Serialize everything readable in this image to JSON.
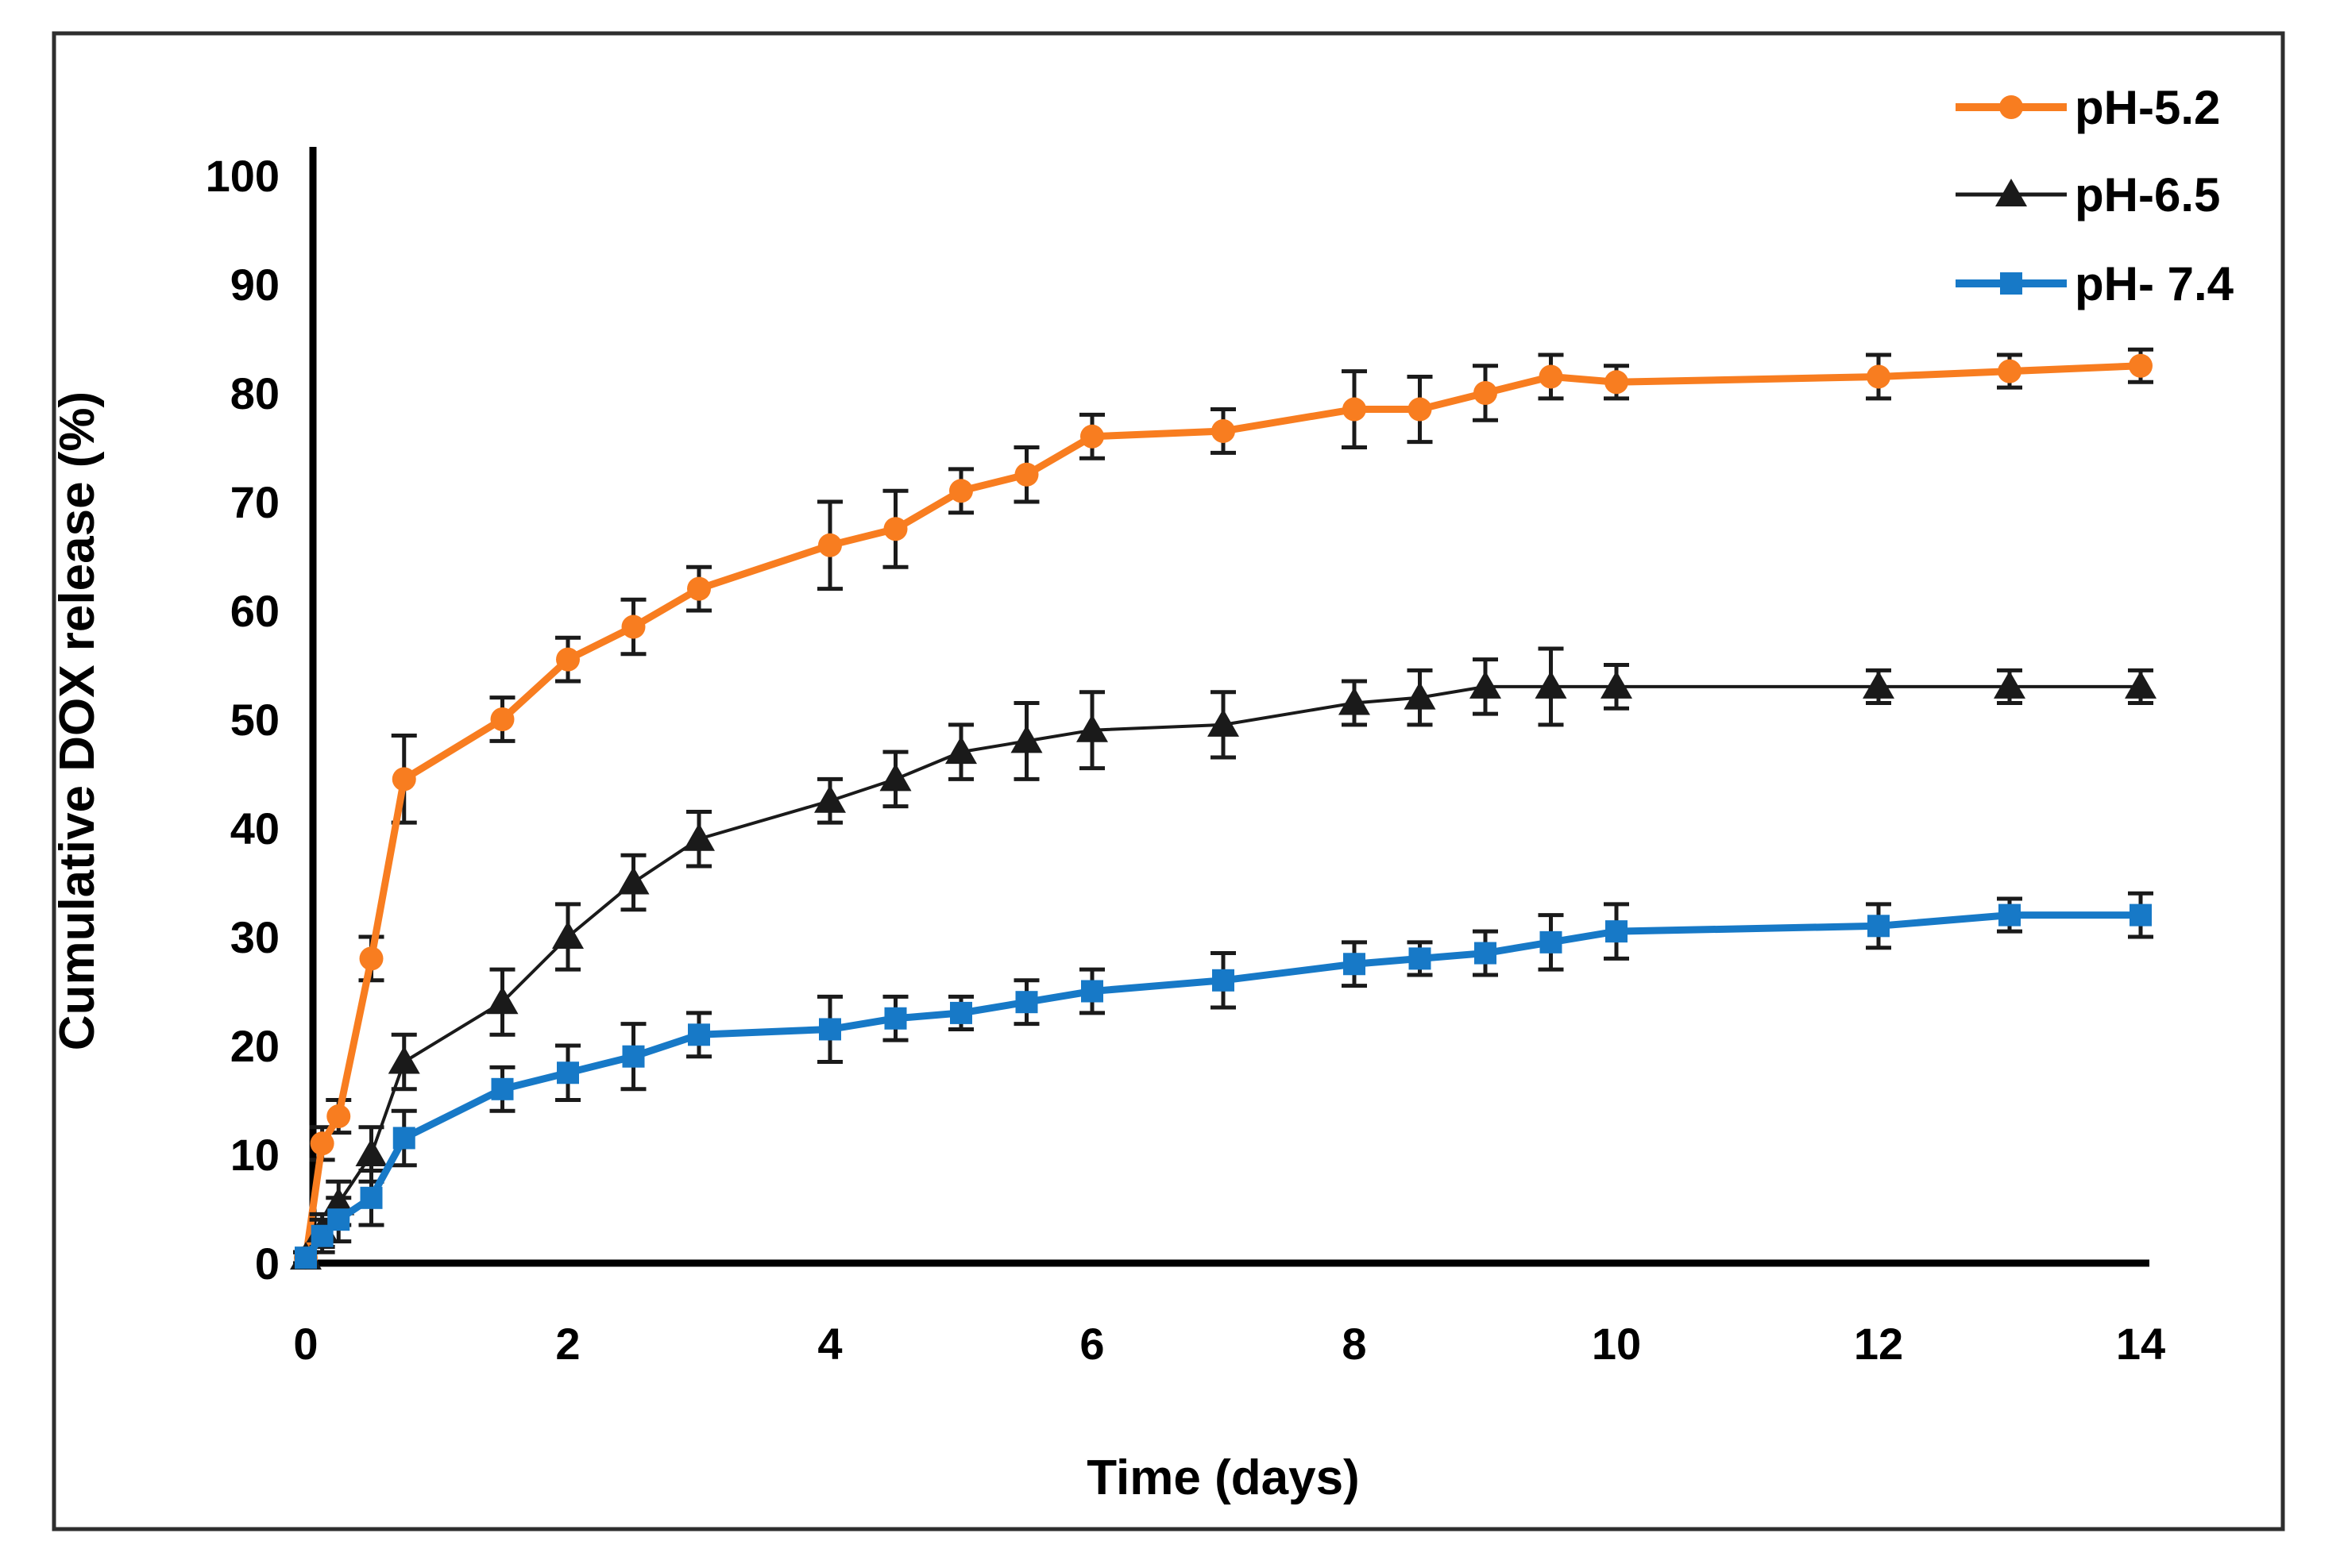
{
  "figure": {
    "background_color": "#ffffff",
    "border_color": "#2e2e2e",
    "error_bar_color": "#1a1a1a",
    "axis_color": "#000000"
  },
  "chart_data": {
    "type": "line",
    "title": "",
    "xlabel": "Time (days)",
    "ylabel": "Cumulative DOX release (%)",
    "xlim": [
      0,
      14
    ],
    "ylim": [
      0,
      100
    ],
    "x_ticks": [
      0,
      2,
      4,
      6,
      8,
      10,
      12,
      14
    ],
    "y_ticks": [
      0,
      10,
      20,
      30,
      40,
      50,
      60,
      70,
      80,
      90,
      100
    ],
    "grid": false,
    "legend_position": "top-right",
    "error_bars": true,
    "x": [
      0,
      0.125,
      0.25,
      0.5,
      0.75,
      1.5,
      2,
      2.5,
      3,
      4,
      4.5,
      5,
      5.5,
      6,
      7,
      8,
      8.5,
      9,
      9.5,
      10,
      12,
      13,
      14
    ],
    "series": [
      {
        "name": "pH-5.2",
        "color": "#F87D20",
        "marker": "circle",
        "line_width": 9,
        "values": [
          0.5,
          11,
          13.5,
          28,
          44.5,
          50,
          55.5,
          58.5,
          62,
          66,
          67.5,
          71,
          72.5,
          76,
          76.5,
          78.5,
          78.5,
          80,
          81.5,
          81,
          81.5,
          82,
          82.5
        ],
        "errors": [
          0.5,
          1.5,
          1.5,
          2,
          4,
          2,
          2,
          2.5,
          2,
          4,
          3.5,
          2,
          2.5,
          2,
          2,
          3.5,
          3,
          2.5,
          2,
          1.5,
          2,
          1.5,
          1.5
        ]
      },
      {
        "name": "pH-6.5",
        "color": "#1A1A1A",
        "marker": "triangle",
        "line_width": 4,
        "values": [
          0.5,
          3,
          5.5,
          10,
          18.5,
          24,
          30,
          35,
          39,
          42.5,
          44.5,
          47,
          48,
          49,
          49.5,
          51.5,
          52,
          53,
          53,
          53,
          53,
          53,
          53
        ],
        "errors": [
          0.5,
          1.5,
          2,
          2.5,
          2.5,
          3,
          3,
          2.5,
          2.5,
          2,
          2.5,
          2.5,
          3.5,
          3.5,
          3,
          2,
          2.5,
          2.5,
          3.5,
          2,
          1.5,
          1.5,
          1.5
        ]
      },
      {
        "name": "pH- 7.4",
        "color": "#1779C7",
        "marker": "square",
        "line_width": 9,
        "values": [
          0.5,
          2.5,
          4,
          6,
          11.5,
          16,
          17.5,
          19,
          21,
          21.5,
          22.5,
          23,
          24,
          25,
          26,
          27.5,
          28,
          28.5,
          29.5,
          30.5,
          31,
          32,
          32
        ],
        "errors": [
          0.5,
          1.5,
          2,
          2.5,
          2.5,
          2,
          2.5,
          3,
          2,
          3,
          2,
          1.5,
          2,
          2,
          2.5,
          2,
          1.5,
          2,
          2.5,
          2.5,
          2,
          1.5,
          2
        ]
      }
    ]
  }
}
